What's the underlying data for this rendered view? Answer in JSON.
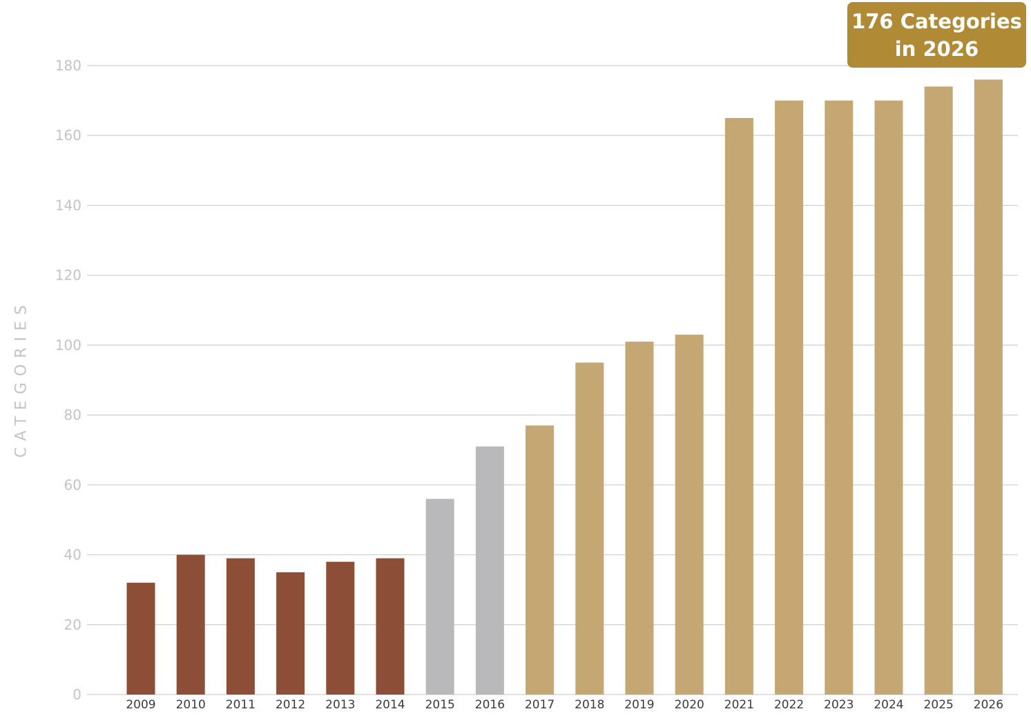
{
  "chart_data": {
    "type": "bar",
    "categories": [
      "2009",
      "2010",
      "2011",
      "2012",
      "2013",
      "2014",
      "2015",
      "2016",
      "2017",
      "2018",
      "2019",
      "2020",
      "2021",
      "2022",
      "2023",
      "2024",
      "2025",
      "2026"
    ],
    "values": [
      32,
      40,
      39,
      35,
      38,
      39,
      56,
      71,
      77,
      95,
      101,
      103,
      165,
      170,
      170,
      170,
      174,
      176
    ],
    "bar_colors": [
      "#8d4e37",
      "#8d4e37",
      "#8d4e37",
      "#8d4e37",
      "#8d4e37",
      "#8d4e37",
      "#b9b9bb",
      "#b9b9bb",
      "#c4a772",
      "#c4a772",
      "#c4a772",
      "#c4a772",
      "#c4a772",
      "#c4a772",
      "#c4a772",
      "#c4a772",
      "#c4a772",
      "#c4a772"
    ],
    "title": "",
    "xlabel": "",
    "ylabel": "CATEGORIES",
    "ylim": [
      0,
      180
    ],
    "yticks": [
      0,
      20,
      40,
      60,
      80,
      100,
      120,
      140,
      160,
      180
    ],
    "grid": true,
    "annotation": {
      "line1": "176 Categories",
      "line2": "in 2026",
      "color": "#b08a35"
    }
  }
}
